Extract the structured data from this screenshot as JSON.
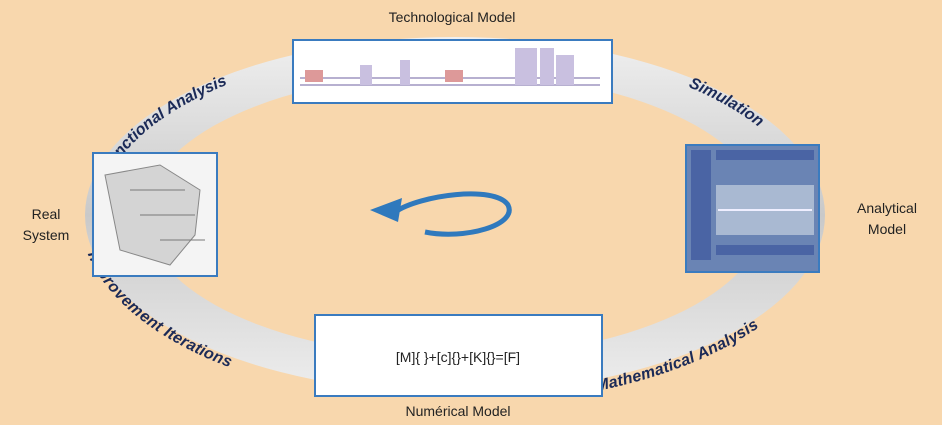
{
  "diagram": {
    "nodes": [
      {
        "label": "Technological Model"
      },
      {
        "label": [
          "Real",
          "System"
        ]
      },
      {
        "label": [
          "Analytical",
          "Model"
        ]
      },
      {
        "label": "Numérical Model",
        "content": "[M]{ }+[c]{}+[K]{}=[F]"
      }
    ],
    "edges": [
      {
        "label": "Functional Analysis"
      },
      {
        "label": "Simulation"
      },
      {
        "label": "Mathematical Analysis"
      },
      {
        "label": "Improvement Iterations"
      }
    ]
  }
}
